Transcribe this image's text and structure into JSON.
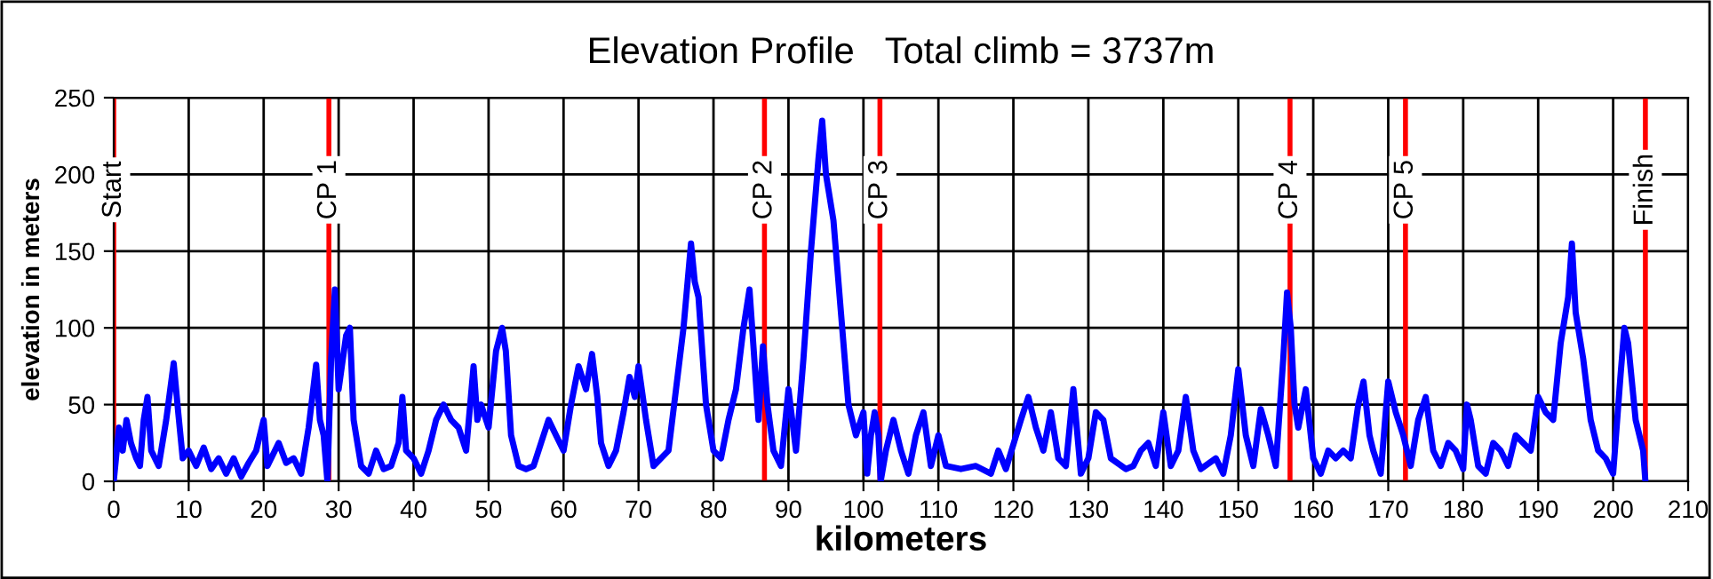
{
  "chart_data": {
    "type": "line",
    "title": "Elevation Profile   Total climb = 3737m",
    "xlabel": "kilometers",
    "ylabel": "elevation in meters",
    "xlim": [
      0,
      210
    ],
    "xticks": [
      0,
      10,
      20,
      30,
      40,
      50,
      60,
      70,
      80,
      90,
      100,
      110,
      120,
      130,
      140,
      150,
      160,
      170,
      180,
      190,
      200,
      210
    ],
    "ylim": [
      0,
      250
    ],
    "yticks": [
      0,
      50,
      100,
      150,
      200,
      250
    ],
    "grid": true,
    "line_style": "solid",
    "series": [
      {
        "color": "#0000ff",
        "x": [
          0,
          0.7,
          1.2,
          1.7,
          2.3,
          3,
          3.5,
          4,
          4.5,
          5,
          6,
          7,
          8,
          8.6,
          9.2,
          10,
          11,
          12,
          13,
          14,
          15,
          16,
          17,
          18,
          19,
          20,
          20.5,
          22,
          23,
          24,
          25,
          26,
          27,
          27.5,
          28,
          28.5,
          29,
          29.5,
          30,
          31,
          31.5,
          32,
          33,
          34,
          35,
          36,
          37,
          38,
          38.5,
          39,
          40,
          41,
          42,
          43,
          44,
          45,
          46,
          47,
          48,
          48.5,
          49,
          50,
          51,
          51.8,
          52.3,
          53,
          54,
          55,
          56,
          57,
          58,
          59,
          60,
          61,
          62,
          63,
          63.8,
          64.5,
          65,
          66,
          67,
          68,
          68.8,
          69.5,
          70,
          71,
          72,
          74,
          75,
          76,
          77,
          77.5,
          78,
          79,
          80,
          81,
          82,
          83,
          84,
          84.8,
          85.3,
          86,
          86.6,
          87.2,
          88,
          89,
          90,
          91,
          92,
          93,
          94,
          94.5,
          95,
          96,
          97,
          98,
          99,
          100,
          100.5,
          101,
          101.5,
          102,
          102.3,
          103,
          104,
          105,
          106,
          107,
          108,
          109,
          110,
          111,
          113,
          115,
          117,
          118,
          119,
          121,
          122,
          123,
          124,
          125,
          126,
          127,
          128,
          129,
          130,
          131,
          132,
          133,
          135,
          136,
          137,
          138,
          139,
          140,
          141,
          142,
          143,
          144,
          145,
          147,
          148,
          149,
          150,
          151,
          152,
          153,
          154,
          155,
          156,
          156.5,
          157,
          157.5,
          158,
          159,
          160,
          161,
          162,
          163,
          164,
          165,
          166,
          166.7,
          167.5,
          168,
          169,
          170,
          171,
          172,
          173,
          174,
          175,
          176,
          177,
          178,
          179,
          180,
          180.5,
          181,
          182,
          183,
          184,
          185,
          186,
          187,
          188,
          189,
          190,
          191,
          192,
          193,
          194,
          194.5,
          195,
          196,
          197,
          198,
          199,
          200,
          201,
          201.5,
          202,
          203,
          204,
          204.3
        ],
        "values": [
          0,
          35,
          20,
          40,
          25,
          15,
          10,
          40,
          55,
          20,
          10,
          40,
          77,
          45,
          15,
          20,
          10,
          22,
          8,
          15,
          5,
          15,
          3,
          12,
          20,
          40,
          10,
          25,
          12,
          15,
          5,
          35,
          76,
          40,
          30,
          0,
          80,
          125,
          60,
          95,
          100,
          40,
          10,
          5,
          20,
          8,
          10,
          25,
          55,
          20,
          15,
          5,
          20,
          40,
          50,
          40,
          35,
          20,
          75,
          40,
          50,
          35,
          85,
          100,
          85,
          30,
          10,
          8,
          10,
          25,
          40,
          30,
          20,
          50,
          75,
          60,
          83,
          55,
          25,
          10,
          20,
          45,
          68,
          55,
          75,
          40,
          10,
          20,
          60,
          100,
          155,
          130,
          120,
          50,
          20,
          15,
          40,
          60,
          100,
          125,
          90,
          40,
          88,
          50,
          20,
          10,
          60,
          20,
          80,
          150,
          210,
          235,
          200,
          170,
          110,
          50,
          30,
          45,
          5,
          30,
          45,
          30,
          0,
          20,
          40,
          20,
          5,
          30,
          45,
          10,
          30,
          10,
          8,
          10,
          5,
          20,
          8,
          40,
          55,
          35,
          20,
          45,
          15,
          10,
          60,
          5,
          15,
          45,
          40,
          15,
          8,
          10,
          20,
          25,
          10,
          45,
          10,
          20,
          55,
          20,
          8,
          15,
          5,
          30,
          73,
          30,
          10,
          47,
          30,
          10,
          80,
          123,
          100,
          50,
          35,
          60,
          15,
          5,
          20,
          15,
          20,
          15,
          50,
          65,
          30,
          20,
          5,
          65,
          45,
          30,
          10,
          40,
          55,
          20,
          10,
          25,
          20,
          8,
          50,
          40,
          10,
          5,
          25,
          20,
          10,
          30,
          25,
          20,
          55,
          45,
          40,
          90,
          120,
          155,
          110,
          80,
          40,
          20,
          15,
          5,
          70,
          100,
          90,
          40,
          20,
          0
        ]
      }
    ],
    "ref_lines": [
      {
        "axis": "x",
        "value": 0,
        "label": "Start",
        "color": "#ff0000"
      },
      {
        "axis": "x",
        "value": 28.7,
        "label": "CP 1",
        "color": "#ff0000"
      },
      {
        "axis": "x",
        "value": 86.8,
        "label": "CP 2",
        "color": "#ff0000"
      },
      {
        "axis": "x",
        "value": 102.2,
        "label": "CP 3",
        "color": "#ff0000"
      },
      {
        "axis": "x",
        "value": 156.9,
        "label": "CP 4",
        "color": "#ff0000"
      },
      {
        "axis": "x",
        "value": 172.3,
        "label": "CP 5",
        "color": "#ff0000"
      },
      {
        "axis": "x",
        "value": 204.3,
        "label": "Finish",
        "color": "#ff0000"
      }
    ]
  }
}
